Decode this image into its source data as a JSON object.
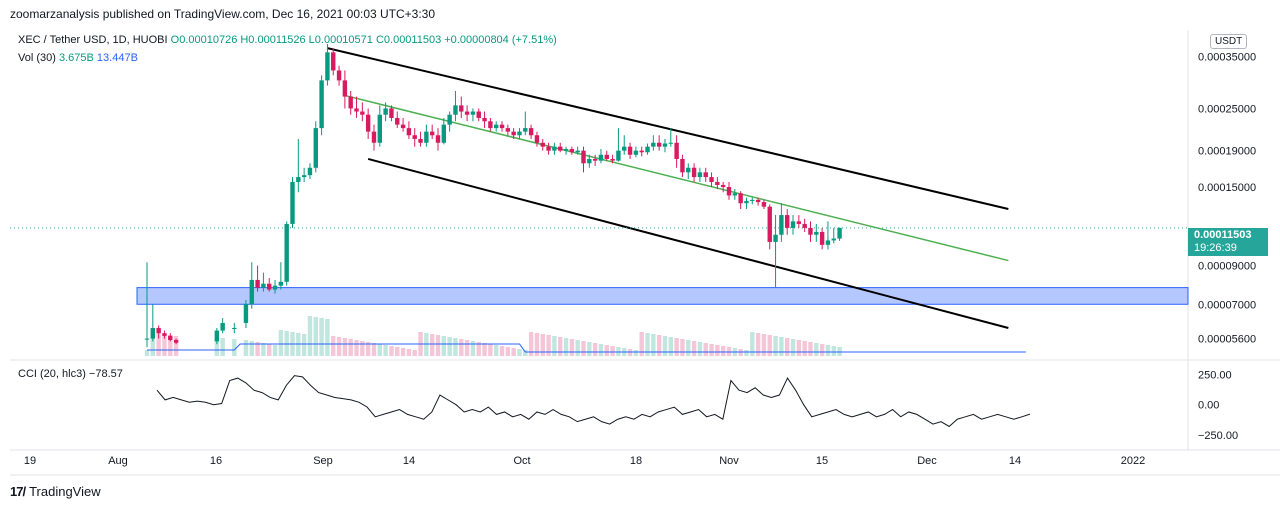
{
  "header": "zoomarzanalysis published on TradingView.com, Dec 16, 2021 00:03 UTC+3:30",
  "legend": {
    "symbol": "XEC / Tether USD, 1D, HUOBI",
    "ohlc": "O0.00010726  H0.00011526  L0.00010571  C0.00011503  +0.00000804 (+7.51%)",
    "vol_label": "Vol (30)",
    "vol_value": "3.675B",
    "vol_ma": "13.447B",
    "cci_label": "CCI (20, hlc3)",
    "cci_value": "−78.57"
  },
  "currency": "USDT",
  "last_price": "0.00011503",
  "countdown": "19:26:39",
  "footer": "TradingView",
  "colors": {
    "up": "#089981",
    "down": "#d81b60",
    "channel": "#000000",
    "midline": "#4caf50",
    "zone": "#2962ff"
  },
  "chart_data": [
    {
      "type": "candlestick",
      "price_axis_ticks": [
        "0.00035000",
        "0.00025000",
        "0.00019000",
        "0.00015000",
        "0.00009000",
        "0.00007000",
        "0.00005600"
      ],
      "date_ticks": [
        "19",
        "Aug",
        "16",
        "Sep",
        "14",
        "Oct",
        "18",
        "Nov",
        "15",
        "Dec",
        "14",
        "2022"
      ],
      "ohlc": [
        [
          "Aug 5",
          5.6e-05,
          9.2e-05,
          5.3e-05,
          5.6e-05
        ],
        [
          "Aug 6",
          5.6e-05,
          7e-05,
          5.5e-05,
          6e-05
        ],
        [
          "Aug 7",
          6e-05,
          6.1e-05,
          5.6e-05,
          5.8e-05
        ],
        [
          "Aug 8",
          5.8e-05,
          5.9e-05,
          5.6e-05,
          5.7e-05
        ],
        [
          "Aug 9",
          5.7e-05,
          5.8e-05,
          5.5e-05,
          5.55e-05
        ],
        [
          "Aug 10",
          5.55e-05,
          5.6e-05,
          5.4e-05,
          5.45e-05
        ],
        [
          "Aug 17",
          5.5e-05,
          6e-05,
          5.4e-05,
          5.9e-05
        ],
        [
          "Aug 18",
          5.9e-05,
          6.4e-05,
          5.8e-05,
          6.2e-05
        ],
        [
          "Aug 20",
          6e-05,
          6.2e-05,
          5.8e-05,
          6e-05
        ],
        [
          "Aug 22",
          6.2e-05,
          7.2e-05,
          6e-05,
          7e-05
        ],
        [
          "Aug 23",
          7e-05,
          9.2e-05,
          6.8e-05,
          8.2e-05
        ],
        [
          "Aug 24",
          8.2e-05,
          9e-05,
          7.6e-05,
          7.8e-05
        ],
        [
          "Aug 25",
          7.8e-05,
          8.6e-05,
          7.6e-05,
          8e-05
        ],
        [
          "Aug 26",
          8e-05,
          8.3e-05,
          7.6e-05,
          7.7e-05
        ],
        [
          "Aug 27",
          7.7e-05,
          8.2e-05,
          7.5e-05,
          7.9e-05
        ],
        [
          "Aug 28",
          7.9e-05,
          9.2e-05,
          7.7e-05,
          8.1e-05
        ],
        [
          "Aug 29",
          8.1e-05,
          0.00012,
          7.9e-05,
          0.000118
        ],
        [
          "Aug 30",
          0.000118,
          0.00016,
          0.000115,
          0.000155
        ],
        [
          "Aug 31",
          0.000155,
          0.000205,
          0.000145,
          0.00016
        ],
        [
          "Sep 1",
          0.00016,
          0.00017,
          0.000155,
          0.000162
        ],
        [
          "Sep 2",
          0.000162,
          0.000175,
          0.000158,
          0.00017
        ],
        [
          "Sep 3",
          0.00017,
          0.00023,
          0.000165,
          0.00022
        ],
        [
          "Sep 4",
          0.00022,
          0.00031,
          0.00021,
          0.0003
        ],
        [
          "Sep 5",
          0.0003,
          0.00038,
          0.00029,
          0.00036
        ],
        [
          "Sep 6",
          0.00036,
          0.00037,
          0.00031,
          0.00032
        ],
        [
          "Sep 7",
          0.00032,
          0.00033,
          0.00029,
          0.0003
        ],
        [
          "Sep 8",
          0.0003,
          0.00032,
          0.00025,
          0.00027
        ],
        [
          "Sep 9",
          0.00027,
          0.00028,
          0.00024,
          0.00025
        ],
        [
          "Sep 10",
          0.00025,
          0.00027,
          0.000235,
          0.000245
        ],
        [
          "Sep 11",
          0.000245,
          0.00026,
          0.00023,
          0.00024
        ],
        [
          "Sep 12",
          0.00024,
          0.00025,
          0.000205,
          0.000215
        ],
        [
          "Sep 13",
          0.000215,
          0.000225,
          0.00019,
          0.0002
        ],
        [
          "Sep 14",
          0.0002,
          0.000255,
          0.000195,
          0.00024
        ],
        [
          "Sep 15",
          0.00024,
          0.00026,
          0.00023,
          0.00025
        ],
        [
          "Sep 16",
          0.00025,
          0.000255,
          0.00023,
          0.000235
        ],
        [
          "Sep 17",
          0.000235,
          0.000245,
          0.00022,
          0.000225
        ],
        [
          "Sep 18",
          0.000225,
          0.000235,
          0.000215,
          0.00022
        ],
        [
          "Sep 19",
          0.00022,
          0.00023,
          0.000205,
          0.00021
        ],
        [
          "Sep 20",
          0.00021,
          0.00022,
          0.000195,
          0.000205
        ],
        [
          "Sep 21",
          0.000205,
          0.000215,
          0.000195,
          0.0002
        ],
        [
          "Sep 22",
          0.0002,
          0.000225,
          0.000195,
          0.000215
        ],
        [
          "Sep 23",
          0.000215,
          0.000225,
          0.000205,
          0.00021
        ],
        [
          "Sep 24",
          0.00021,
          0.00022,
          0.00019,
          0.0002
        ],
        [
          "Sep 25",
          0.0002,
          0.000235,
          0.000198,
          0.000225
        ],
        [
          "Sep 26",
          0.000225,
          0.000245,
          0.000215,
          0.00024
        ],
        [
          "Sep 27",
          0.00024,
          0.00028,
          0.00023,
          0.000255
        ],
        [
          "Sep 28",
          0.000255,
          0.00027,
          0.000235,
          0.000245
        ],
        [
          "Sep 29",
          0.000245,
          0.000255,
          0.00023,
          0.00024
        ],
        [
          "Sep 30",
          0.00024,
          0.00025,
          0.00023,
          0.000245
        ],
        [
          "Oct 1",
          0.000245,
          0.00025,
          0.00023,
          0.000235
        ],
        [
          "Oct 2",
          0.000235,
          0.000245,
          0.00022,
          0.00023
        ],
        [
          "Oct 3",
          0.00023,
          0.000235,
          0.000215,
          0.00022
        ],
        [
          "Oct 4",
          0.00022,
          0.00023,
          0.000215,
          0.000225
        ],
        [
          "Oct 5",
          0.000225,
          0.00023,
          0.000215,
          0.00022
        ],
        [
          "Oct 6",
          0.00022,
          0.000225,
          0.00021,
          0.000215
        ],
        [
          "Oct 7",
          0.000215,
          0.00022,
          0.000205,
          0.00021
        ],
        [
          "Oct 8",
          0.00021,
          0.00022,
          0.000205,
          0.000215
        ],
        [
          "Oct 9",
          0.000215,
          0.000245,
          0.00021,
          0.00022
        ],
        [
          "Oct 10",
          0.00022,
          0.000225,
          0.000205,
          0.00021
        ],
        [
          "Oct 11",
          0.00021,
          0.000215,
          0.000195,
          0.0002
        ],
        [
          "Oct 12",
          0.0002,
          0.000205,
          0.00019,
          0.000195
        ],
        [
          "Oct 13",
          0.000195,
          0.0002,
          0.000185,
          0.00019
        ],
        [
          "Oct 14",
          0.00019,
          0.0002,
          0.000185,
          0.000195
        ],
        [
          "Oct 15",
          0.000195,
          0.0002,
          0.000188,
          0.00019
        ],
        [
          "Oct 16",
          0.00019,
          0.000195,
          0.000185,
          0.000192
        ],
        [
          "Oct 17",
          0.000192,
          0.000195,
          0.000185,
          0.000188
        ],
        [
          "Oct 18",
          0.000188,
          0.000195,
          0.000185,
          0.00019
        ],
        [
          "Oct 19",
          0.00019,
          0.000195,
          0.000165,
          0.000175
        ],
        [
          "Oct 20",
          0.000175,
          0.000185,
          0.00017,
          0.00018
        ],
        [
          "Oct 21",
          0.00018,
          0.000185,
          0.000172,
          0.000178
        ],
        [
          "Oct 22",
          0.000178,
          0.000192,
          0.000175,
          0.000185
        ],
        [
          "Oct 23",
          0.000185,
          0.00019,
          0.000178,
          0.00018
        ],
        [
          "Oct 24",
          0.00018,
          0.000185,
          0.000175,
          0.000178
        ],
        [
          "Oct 25",
          0.000178,
          0.00022,
          0.000177,
          0.00019
        ],
        [
          "Oct 26",
          0.00019,
          0.00021,
          0.000185,
          0.000195
        ],
        [
          "Oct 27",
          0.000195,
          0.0002,
          0.00018,
          0.000185
        ],
        [
          "Oct 28",
          0.000185,
          0.000195,
          0.000182,
          0.00019
        ],
        [
          "Oct 29",
          0.00019,
          0.000195,
          0.000183,
          0.000188
        ],
        [
          "Oct 30",
          0.000188,
          0.000199,
          0.000185,
          0.000195
        ],
        [
          "Oct 31",
          0.000195,
          0.00021,
          0.00019,
          0.0002
        ],
        [
          "Nov 1",
          0.0002,
          0.00021,
          0.00019,
          0.000195
        ],
        [
          "Nov 2",
          0.000195,
          0.000205,
          0.000188,
          0.000199
        ],
        [
          "Nov 3",
          0.000199,
          0.00022,
          0.000195,
          0.0002
        ],
        [
          "Nov 4",
          0.0002,
          0.00021,
          0.00017,
          0.00018
        ],
        [
          "Nov 5",
          0.00018,
          0.000185,
          0.00016,
          0.000165
        ],
        [
          "Nov 6",
          0.000165,
          0.000175,
          0.000158,
          0.00017
        ],
        [
          "Nov 7",
          0.00017,
          0.000175,
          0.000155,
          0.00016
        ],
        [
          "Nov 8",
          0.00016,
          0.00017,
          0.000155,
          0.000165
        ],
        [
          "Nov 9",
          0.000165,
          0.00017,
          0.000155,
          0.00016
        ],
        [
          "Nov 10",
          0.00016,
          0.000165,
          0.00015,
          0.000155
        ],
        [
          "Nov 11",
          0.000155,
          0.00016,
          0.000148,
          0.000152
        ],
        [
          "Nov 12",
          0.000152,
          0.000155,
          0.000145,
          0.00015
        ],
        [
          "Nov 13",
          0.00015,
          0.000155,
          0.000138,
          0.000142
        ],
        [
          "Nov 14",
          0.000142,
          0.000148,
          0.000138,
          0.000144
        ],
        [
          "Nov 15",
          0.000144,
          0.000146,
          0.00013,
          0.000135
        ],
        [
          "Nov 16",
          0.000135,
          0.00014,
          0.00013,
          0.000137
        ],
        [
          "Nov 17",
          0.000137,
          0.00014,
          0.000134,
          0.000138
        ],
        [
          "Nov 18",
          0.000138,
          0.00014,
          0.000133,
          0.000136
        ],
        [
          "Nov 19",
          0.000136,
          0.000138,
          0.00013,
          0.000132
        ],
        [
          "Nov 20",
          0.000132,
          0.000134,
          0.0001,
          0.000105
        ],
        [
          "Nov 21",
          0.000105,
          0.000125,
          7.8e-05,
          0.00011
        ],
        [
          "Nov 22",
          0.00011,
          0.000135,
          0.000105,
          0.000125
        ],
        [
          "Nov 23",
          0.000125,
          0.00013,
          0.00011,
          0.000115
        ],
        [
          "Nov 24",
          0.000115,
          0.000125,
          0.00011,
          0.00012
        ],
        [
          "Nov 25",
          0.00012,
          0.000125,
          0.000115,
          0.000118
        ],
        [
          "Nov 26",
          0.000118,
          0.000122,
          0.000112,
          0.000115
        ],
        [
          "Nov 27",
          0.000115,
          0.00012,
          0.000105,
          0.00011
        ],
        [
          "Nov 28",
          0.00011,
          0.000118,
          0.000105,
          0.000112
        ],
        [
          "Nov 29",
          0.000112,
          0.000115,
          0.0001,
          0.000103
        ],
        [
          "Nov 30",
          0.000103,
          0.00012,
          0.0001,
          0.000106
        ],
        [
          "Dec 1",
          0.000106,
          0.000115,
          0.000104,
          0.0001073
        ],
        [
          "Dec 2",
          0.0001073,
          0.0001153,
          0.0001057,
          0.000115
        ]
      ],
      "channel_upper": [
        [
          "Sep 5",
          0.00037
        ],
        [
          "Dec 31",
          0.00013
        ]
      ],
      "channel_midline": [
        [
          "Sep 8",
          0.000272
        ],
        [
          "Dec 31",
          9.3e-05
        ]
      ],
      "channel_lower": [
        [
          "Sep 12",
          0.00018
        ],
        [
          "Dec 31",
          6e-05
        ]
      ],
      "support_zone": [
        7.8e-05,
        7e-05
      ],
      "volume_ma": "13.447B",
      "cci": {
        "ticks": [
          "250.00",
          "0.00",
          "−250.00"
        ],
        "values": [
          120,
          40,
          60,
          40,
          20,
          30,
          20,
          0,
          10,
          200,
          220,
          180,
          120,
          100,
          60,
          40,
          160,
          240,
          230,
          160,
          100,
          80,
          60,
          50,
          40,
          20,
          -20,
          -100,
          -80,
          -60,
          -40,
          -80,
          -100,
          -120,
          -60,
          80,
          40,
          0,
          -60,
          -40,
          -60,
          -20,
          -80,
          -60,
          -100,
          -80,
          -120,
          -60,
          -80,
          -40,
          -80,
          -100,
          -140,
          -120,
          -100,
          -140,
          -160,
          -120,
          -100,
          -120,
          -80,
          -100,
          -60,
          -40,
          -20,
          -80,
          -60,
          -40,
          -100,
          -80,
          -120,
          200,
          120,
          100,
          140,
          80,
          60,
          80,
          220,
          120,
          0,
          -100,
          -80,
          -60,
          -40,
          -80,
          -100,
          -80,
          -60,
          -100,
          -80,
          -40,
          -100,
          -60,
          -80,
          -120,
          -160,
          -140,
          -180,
          -120,
          -100,
          -80,
          -120,
          -100,
          -80,
          -100,
          -120,
          -100,
          -78
        ]
      }
    }
  ]
}
